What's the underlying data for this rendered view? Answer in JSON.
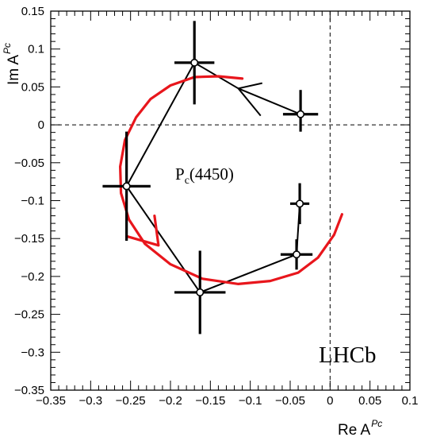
{
  "chart_data": {
    "type": "scatter",
    "title": "",
    "xlabel": "Re A",
    "xlabel_sup": "Pc",
    "ylabel": "Im A",
    "ylabel_sup": "Pc",
    "xlim": [
      -0.35,
      0.1
    ],
    "ylim": [
      -0.35,
      0.15
    ],
    "grid": false,
    "x_ticks": [
      -0.35,
      -0.3,
      -0.25,
      -0.2,
      -0.15,
      -0.1,
      -0.05,
      0,
      0.05,
      0.1
    ],
    "x_tick_labels": [
      "−0.35",
      "−0.3",
      "−0.25",
      "−0.2",
      "−0.15",
      "−0.1",
      "−0.05",
      "0",
      "0.05",
      "0.1"
    ],
    "y_ticks": [
      -0.35,
      -0.3,
      -0.25,
      -0.2,
      -0.15,
      -0.1,
      -0.05,
      0,
      0.05,
      0.1,
      0.15
    ],
    "y_tick_labels": [
      "−0.35",
      "−0.3",
      "−0.25",
      "−0.2",
      "−0.15",
      "−0.1",
      "−0.05",
      "0",
      "0.05",
      "0.1",
      "0.15"
    ],
    "points": [
      {
        "x": -0.037,
        "y": 0.014,
        "xerr": 0.022,
        "yerr": [
          0.032,
          0.023
        ]
      },
      {
        "x": -0.17,
        "y": 0.082,
        "xerr": 0.025,
        "yerr": 0.055
      },
      {
        "x": -0.255,
        "y": -0.081,
        "xerr": 0.03,
        "yerr": 0.072
      },
      {
        "x": -0.163,
        "y": -0.221,
        "xerr": 0.032,
        "yerr": 0.055
      },
      {
        "x": -0.042,
        "y": -0.171,
        "xerr": 0.02,
        "yerr": 0.02
      },
      {
        "x": -0.038,
        "y": -0.104,
        "xerr": 0.012,
        "yerr": 0.027
      }
    ],
    "arrow_from": [
      -0.087,
      0.012
    ],
    "arrow_to": [
      -0.115,
      0.048
    ],
    "arrow_head": [
      -0.085,
      0.055
    ],
    "curve": [
      [
        0.015,
        -0.118
      ],
      [
        0.005,
        -0.145
      ],
      [
        -0.015,
        -0.175
      ],
      [
        -0.04,
        -0.195
      ],
      [
        -0.075,
        -0.206
      ],
      [
        -0.115,
        -0.21
      ],
      [
        -0.16,
        -0.203
      ],
      [
        -0.2,
        -0.184
      ],
      [
        -0.232,
        -0.157
      ],
      [
        -0.252,
        -0.125
      ],
      [
        -0.262,
        -0.09
      ],
      [
        -0.263,
        -0.055
      ],
      [
        -0.257,
        -0.02
      ],
      [
        -0.243,
        0.01
      ],
      [
        -0.225,
        0.034
      ],
      [
        -0.2,
        0.052
      ],
      [
        -0.17,
        0.063
      ],
      [
        -0.14,
        0.064
      ],
      [
        -0.11,
        0.061
      ]
    ],
    "curve_arrow": {
      "from": [
        -0.22,
        -0.12
      ],
      "to": [
        -0.215,
        -0.159
      ],
      "start": [
        -0.255,
        -0.147
      ]
    },
    "series_color": "#000000",
    "curve_color": "#e8161c",
    "annotation": "P",
    "annotation_sub": "c",
    "annotation_suffix": "(4450)",
    "watermark": "LHCb"
  }
}
